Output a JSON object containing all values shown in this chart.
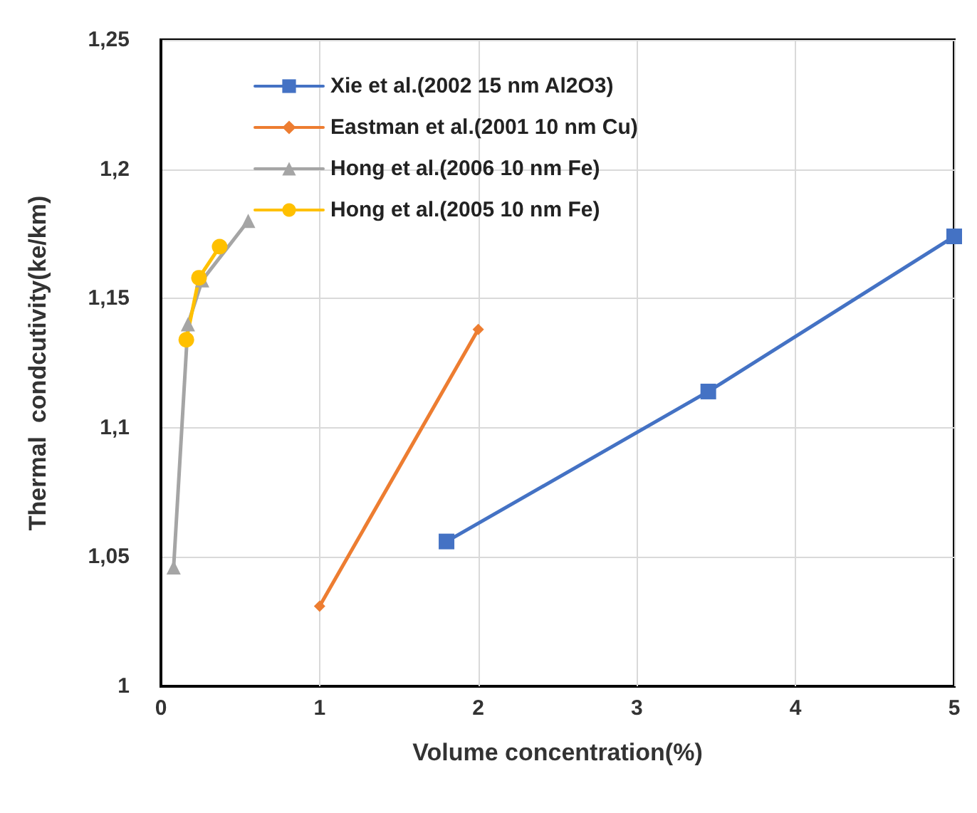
{
  "chart_data": {
    "type": "line",
    "xlabel": "Volume concentration(%)",
    "ylabel": "Thermal  condcutivity(ke/km)",
    "xlim": [
      0,
      5
    ],
    "xticks": [
      0,
      1,
      2,
      3,
      4,
      5
    ],
    "ylim": [
      1,
      1.25
    ],
    "yticks": [
      1,
      {
        "value": 1.05,
        "label": "1,05"
      },
      {
        "value": 1.1,
        "label": "1,1"
      },
      {
        "value": 1.15,
        "label": "1,15"
      },
      {
        "value": 1.2,
        "label": "1,2"
      },
      {
        "value": 1.25,
        "label": "1,25"
      }
    ],
    "grid": true,
    "legend": "top left",
    "line_style": "solid",
    "series": [
      {
        "name": "Xie et al.(2002 15 nm Al2O3)",
        "color": "#4472c4",
        "marker": "square",
        "x": [
          1.8,
          3.45,
          5.0
        ],
        "values": [
          1.056,
          1.114,
          1.174
        ]
      },
      {
        "name": "Eastman et al.(2001 10 nm Cu)",
        "color": "#ed7d31",
        "marker": "diamond",
        "x": [
          1.0,
          2.0
        ],
        "values": [
          1.031,
          1.138
        ]
      },
      {
        "name": "Hong et al.(2006 10 nm Fe)",
        "color": "#a5a5a5",
        "marker": "triangle",
        "x": [
          0.08,
          0.17,
          0.26,
          0.55
        ],
        "values": [
          1.046,
          1.14,
          1.157,
          1.18
        ]
      },
      {
        "name": "Hong et al.(2005 10 nm Fe)",
        "color": "#ffc000",
        "marker": "circle",
        "x": [
          0.16,
          0.24,
          0.37
        ],
        "values": [
          1.134,
          1.158,
          1.17
        ]
      }
    ]
  }
}
